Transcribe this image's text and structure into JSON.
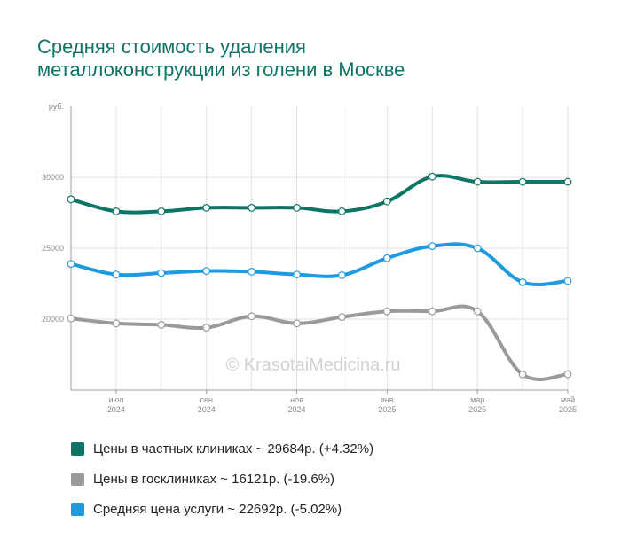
{
  "title_lines": [
    "Средняя стоимость удаления",
    "металлоконструкции из голени в Москве"
  ],
  "watermark": "© KrasotaiMedicina.ru",
  "chart_data": {
    "type": "line",
    "title": "Средняя стоимость удаления металлоконструкции из голени в Москве",
    "y_unit": "руб.",
    "ylim": [
      15000,
      35000
    ],
    "y_ticks": [
      20000,
      25000,
      30000
    ],
    "y_tick_labels": [
      "20000",
      "25000",
      "30000"
    ],
    "x_points": [
      "2024-06",
      "2024-07",
      "2024-08",
      "2024-09",
      "2024-10",
      "2024-11",
      "2024-12",
      "2025-01",
      "2025-02",
      "2025-03",
      "2025-04",
      "2025-05"
    ],
    "x_tick_labels": [
      {
        "x": "2024-07",
        "month": "июл",
        "year": "2024"
      },
      {
        "x": "2024-09",
        "month": "сен",
        "year": "2024"
      },
      {
        "x": "2024-11",
        "month": "ноя",
        "year": "2024"
      },
      {
        "x": "2025-01",
        "month": "янв",
        "year": "2025"
      },
      {
        "x": "2025-03",
        "month": "мар",
        "year": "2025"
      },
      {
        "x": "2025-05",
        "month": "май",
        "year": "2025"
      }
    ],
    "grid": true,
    "legend_position": "bottom",
    "series": [
      {
        "name": "Цены в частных клиниках",
        "legend_label": "Цены в частных клиниках ~ 29684р. (+4.32%)",
        "color": "#0d7466",
        "values": [
          28450,
          27600,
          27600,
          27850,
          27850,
          27850,
          27600,
          28300,
          30050,
          29684,
          29684,
          29684
        ]
      },
      {
        "name": "Цены в госклиниках",
        "legend_label": "Цены в госклиниках ~ 16121р. (-19.6%)",
        "color": "#9a9a9a",
        "values": [
          20050,
          19700,
          19600,
          19400,
          20200,
          19700,
          20150,
          20550,
          20550,
          20550,
          16100,
          16121
        ]
      },
      {
        "name": "Средняя цена услуги",
        "legend_label": "Средняя цена услуги ~ 22692р. (-5.02%)",
        "color": "#1e9be0",
        "values": [
          23900,
          23150,
          23250,
          23400,
          23350,
          23150,
          23100,
          24300,
          25150,
          25000,
          22600,
          22692
        ]
      }
    ]
  }
}
